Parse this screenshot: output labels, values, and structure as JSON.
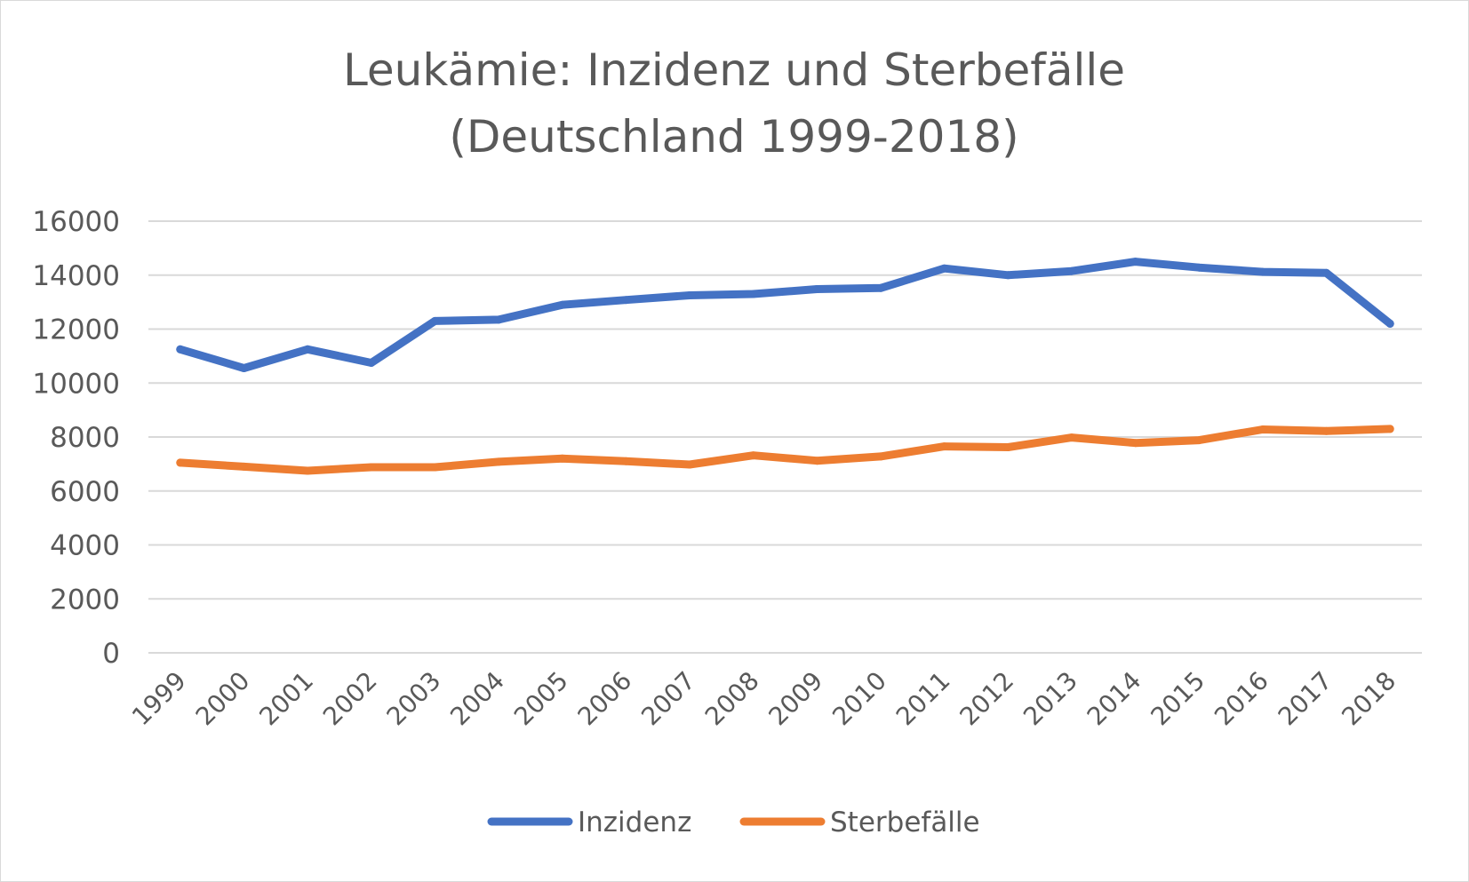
{
  "chart_data": {
    "type": "line",
    "title_lines": [
      "Leukämie: Inzidenz und Sterbefälle",
      "(Deutschland 1999-2018)"
    ],
    "xlabel": "",
    "ylabel": "",
    "categories": [
      "1999",
      "2000",
      "2001",
      "2002",
      "2003",
      "2004",
      "2005",
      "2006",
      "2007",
      "2008",
      "2009",
      "2010",
      "2011",
      "2012",
      "2013",
      "2014",
      "2015",
      "2016",
      "2017",
      "2018"
    ],
    "ylim": [
      0,
      16000
    ],
    "yticks": [
      0,
      2000,
      4000,
      6000,
      8000,
      10000,
      12000,
      14000,
      16000
    ],
    "ytick_labels": [
      "0",
      "2000",
      "4000",
      "6000",
      "8000",
      "10000",
      "12000",
      "14000",
      "16000"
    ],
    "grid": true,
    "legend_position": "bottom",
    "series": [
      {
        "name": "Inzidenz",
        "color": "#4472c4",
        "values": [
          11250,
          10550,
          11250,
          10750,
          12300,
          12350,
          12900,
          13080,
          13250,
          13300,
          13480,
          13520,
          14250,
          14000,
          14150,
          14500,
          14280,
          14120,
          14080,
          12200
        ]
      },
      {
        "name": "Sterbefälle",
        "color": "#ed7d31",
        "values": [
          7050,
          6900,
          6750,
          6880,
          6880,
          7080,
          7200,
          7100,
          6980,
          7320,
          7120,
          7280,
          7650,
          7620,
          7980,
          7780,
          7880,
          8280,
          8220,
          8300
        ]
      }
    ]
  }
}
